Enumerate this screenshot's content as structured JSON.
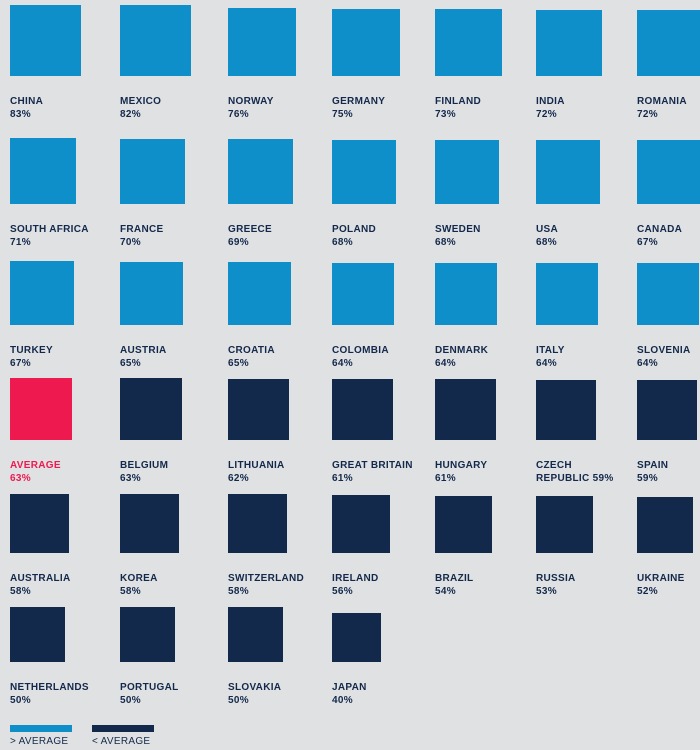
{
  "chart_data": {
    "type": "area",
    "unit": "%",
    "average": 63,
    "colors": {
      "above": "#0f8fca",
      "below": "#13294b",
      "average": "#ee1a4f",
      "label_dark": "#13294b"
    },
    "items": [
      {
        "name": "CHINA",
        "value": 83,
        "group": "above"
      },
      {
        "name": "MEXICO",
        "value": 82,
        "group": "above"
      },
      {
        "name": "NORWAY",
        "value": 76,
        "group": "above"
      },
      {
        "name": "GERMANY",
        "value": 75,
        "group": "above"
      },
      {
        "name": "FINLAND",
        "value": 73,
        "group": "above"
      },
      {
        "name": "INDIA",
        "value": 72,
        "group": "above"
      },
      {
        "name": "ROMANIA",
        "value": 72,
        "group": "above"
      },
      {
        "name": "SOUTH AFRICA",
        "value": 71,
        "group": "above"
      },
      {
        "name": "FRANCE",
        "value": 70,
        "group": "above"
      },
      {
        "name": "GREECE",
        "value": 69,
        "group": "above"
      },
      {
        "name": "POLAND",
        "value": 68,
        "group": "above"
      },
      {
        "name": "SWEDEN",
        "value": 68,
        "group": "above"
      },
      {
        "name": "USA",
        "value": 68,
        "group": "above"
      },
      {
        "name": "CANADA",
        "value": 67,
        "group": "above"
      },
      {
        "name": "TURKEY",
        "value": 67,
        "group": "above"
      },
      {
        "name": "AUSTRIA",
        "value": 65,
        "group": "above"
      },
      {
        "name": "CROATIA",
        "value": 65,
        "group": "above"
      },
      {
        "name": "COLOMBIA",
        "value": 64,
        "group": "above"
      },
      {
        "name": "DENMARK",
        "value": 64,
        "group": "above"
      },
      {
        "name": "ITALY",
        "value": 64,
        "group": "above"
      },
      {
        "name": "SLOVENIA",
        "value": 64,
        "group": "above"
      },
      {
        "name": "AVERAGE",
        "value": 63,
        "group": "average"
      },
      {
        "name": "BELGIUM",
        "value": 63,
        "group": "below"
      },
      {
        "name": "LITHUANIA",
        "value": 62,
        "group": "below"
      },
      {
        "name": "GREAT BRITAIN",
        "value": 61,
        "group": "below"
      },
      {
        "name": "HUNGARY",
        "value": 61,
        "group": "below"
      },
      {
        "name": "CZECH REPUBLIC",
        "value": 59,
        "group": "below",
        "label_lines": [
          "CZECH",
          "REPUBLIC 59%"
        ]
      },
      {
        "name": "SPAIN",
        "value": 59,
        "group": "below"
      },
      {
        "name": "AUSTRALIA",
        "value": 58,
        "group": "below"
      },
      {
        "name": "KOREA",
        "value": 58,
        "group": "below"
      },
      {
        "name": "SWITZERLAND",
        "value": 58,
        "group": "below"
      },
      {
        "name": "IRELAND",
        "value": 56,
        "group": "below"
      },
      {
        "name": "BRAZIL",
        "value": 54,
        "group": "below"
      },
      {
        "name": "RUSSIA",
        "value": 53,
        "group": "below"
      },
      {
        "name": "UKRAINE",
        "value": 52,
        "group": "below"
      },
      {
        "name": "NETHERLANDS",
        "value": 50,
        "group": "below"
      },
      {
        "name": "PORTUGAL",
        "value": 50,
        "group": "below"
      },
      {
        "name": "SLOVAKIA",
        "value": 50,
        "group": "below"
      },
      {
        "name": "JAPAN",
        "value": 40,
        "group": "below"
      }
    ],
    "legend": [
      {
        "label": "> AVERAGE",
        "group": "above"
      },
      {
        "label": "< AVERAGE",
        "group": "below"
      }
    ]
  }
}
